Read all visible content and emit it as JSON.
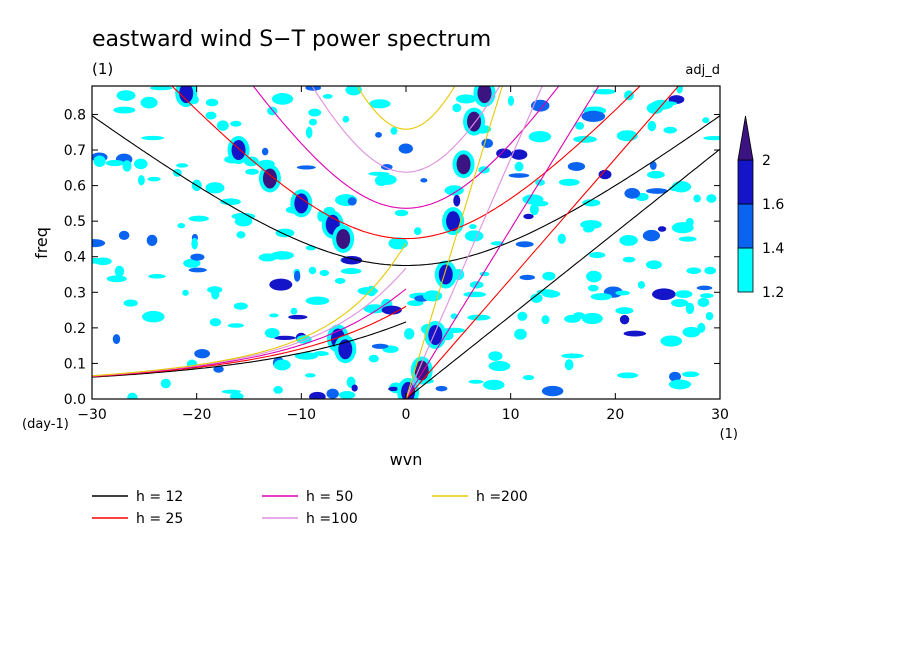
{
  "chart_data": {
    "type": "heatmap",
    "title": "eastward wind S−T power spectrum",
    "subtitle_left": "(1)",
    "subtitle_right": "adj_d",
    "xlabel": "wvn",
    "ylabel": "freq",
    "x_unit": "(1)",
    "y_unit": "(day-1)",
    "xlim": [
      -30,
      30
    ],
    "ylim": [
      0,
      0.88
    ],
    "x_ticks": [
      -30,
      -20,
      -10,
      0,
      10,
      20,
      30
    ],
    "x_tick_labels": [
      "−30",
      "−20",
      "−10",
      "0",
      "10",
      "20",
      "30"
    ],
    "y_ticks": [
      0.0,
      0.1,
      0.2,
      0.3,
      0.4,
      0.5,
      0.6,
      0.7,
      0.8
    ],
    "y_tick_labels": [
      "0.0",
      "0.1",
      "0.2",
      "0.3",
      "0.4",
      "0.5",
      "0.6",
      "0.7",
      "0.8"
    ],
    "colorbar": {
      "levels": [
        1.2,
        1.4,
        1.6,
        2
      ],
      "labels": [
        "1.2",
        "1.4",
        "1.6",
        "2"
      ],
      "colors": [
        "#00ffff",
        "#0a64f0",
        "#1414c8",
        "#3c1482"
      ]
    },
    "dispersion_curves": [
      {
        "name": "h = 12",
        "h": 12,
        "color": "#000000"
      },
      {
        "name": "h = 25",
        "h": 25,
        "color": "#ff0000"
      },
      {
        "name": "h = 50",
        "h": 50,
        "color": "#e000b0"
      },
      {
        "name": "h =100",
        "h": 100,
        "color": "#e090e0"
      },
      {
        "name": "h =200",
        "h": 200,
        "color": "#e8c800"
      }
    ],
    "spectrum_features": {
      "kelvin_ridge": [
        {
          "x": 0.2,
          "y": 0.02,
          "level": 1.6
        },
        {
          "x": 1.5,
          "y": 0.08,
          "level": 2
        },
        {
          "x": 2.8,
          "y": 0.18,
          "level": 1.6
        },
        {
          "x": 3.8,
          "y": 0.35,
          "level": 1.6
        },
        {
          "x": 4.5,
          "y": 0.5,
          "level": 1.6
        },
        {
          "x": 5.5,
          "y": 0.66,
          "level": 2
        },
        {
          "x": 6.5,
          "y": 0.78,
          "level": 2
        },
        {
          "x": 7.5,
          "y": 0.86,
          "level": 2
        }
      ],
      "westward_ridge": [
        {
          "x": -21,
          "y": 0.86,
          "level": 1.6
        },
        {
          "x": -16,
          "y": 0.7,
          "level": 1.6
        },
        {
          "x": -13,
          "y": 0.62,
          "level": 2
        },
        {
          "x": -10,
          "y": 0.55,
          "level": 1.6
        },
        {
          "x": -7,
          "y": 0.49,
          "level": 1.6
        },
        {
          "x": -6,
          "y": 0.45,
          "level": 2
        },
        {
          "x": -6.5,
          "y": 0.17,
          "level": 1.6
        },
        {
          "x": -5.8,
          "y": 0.14,
          "level": 1.6
        }
      ]
    }
  }
}
